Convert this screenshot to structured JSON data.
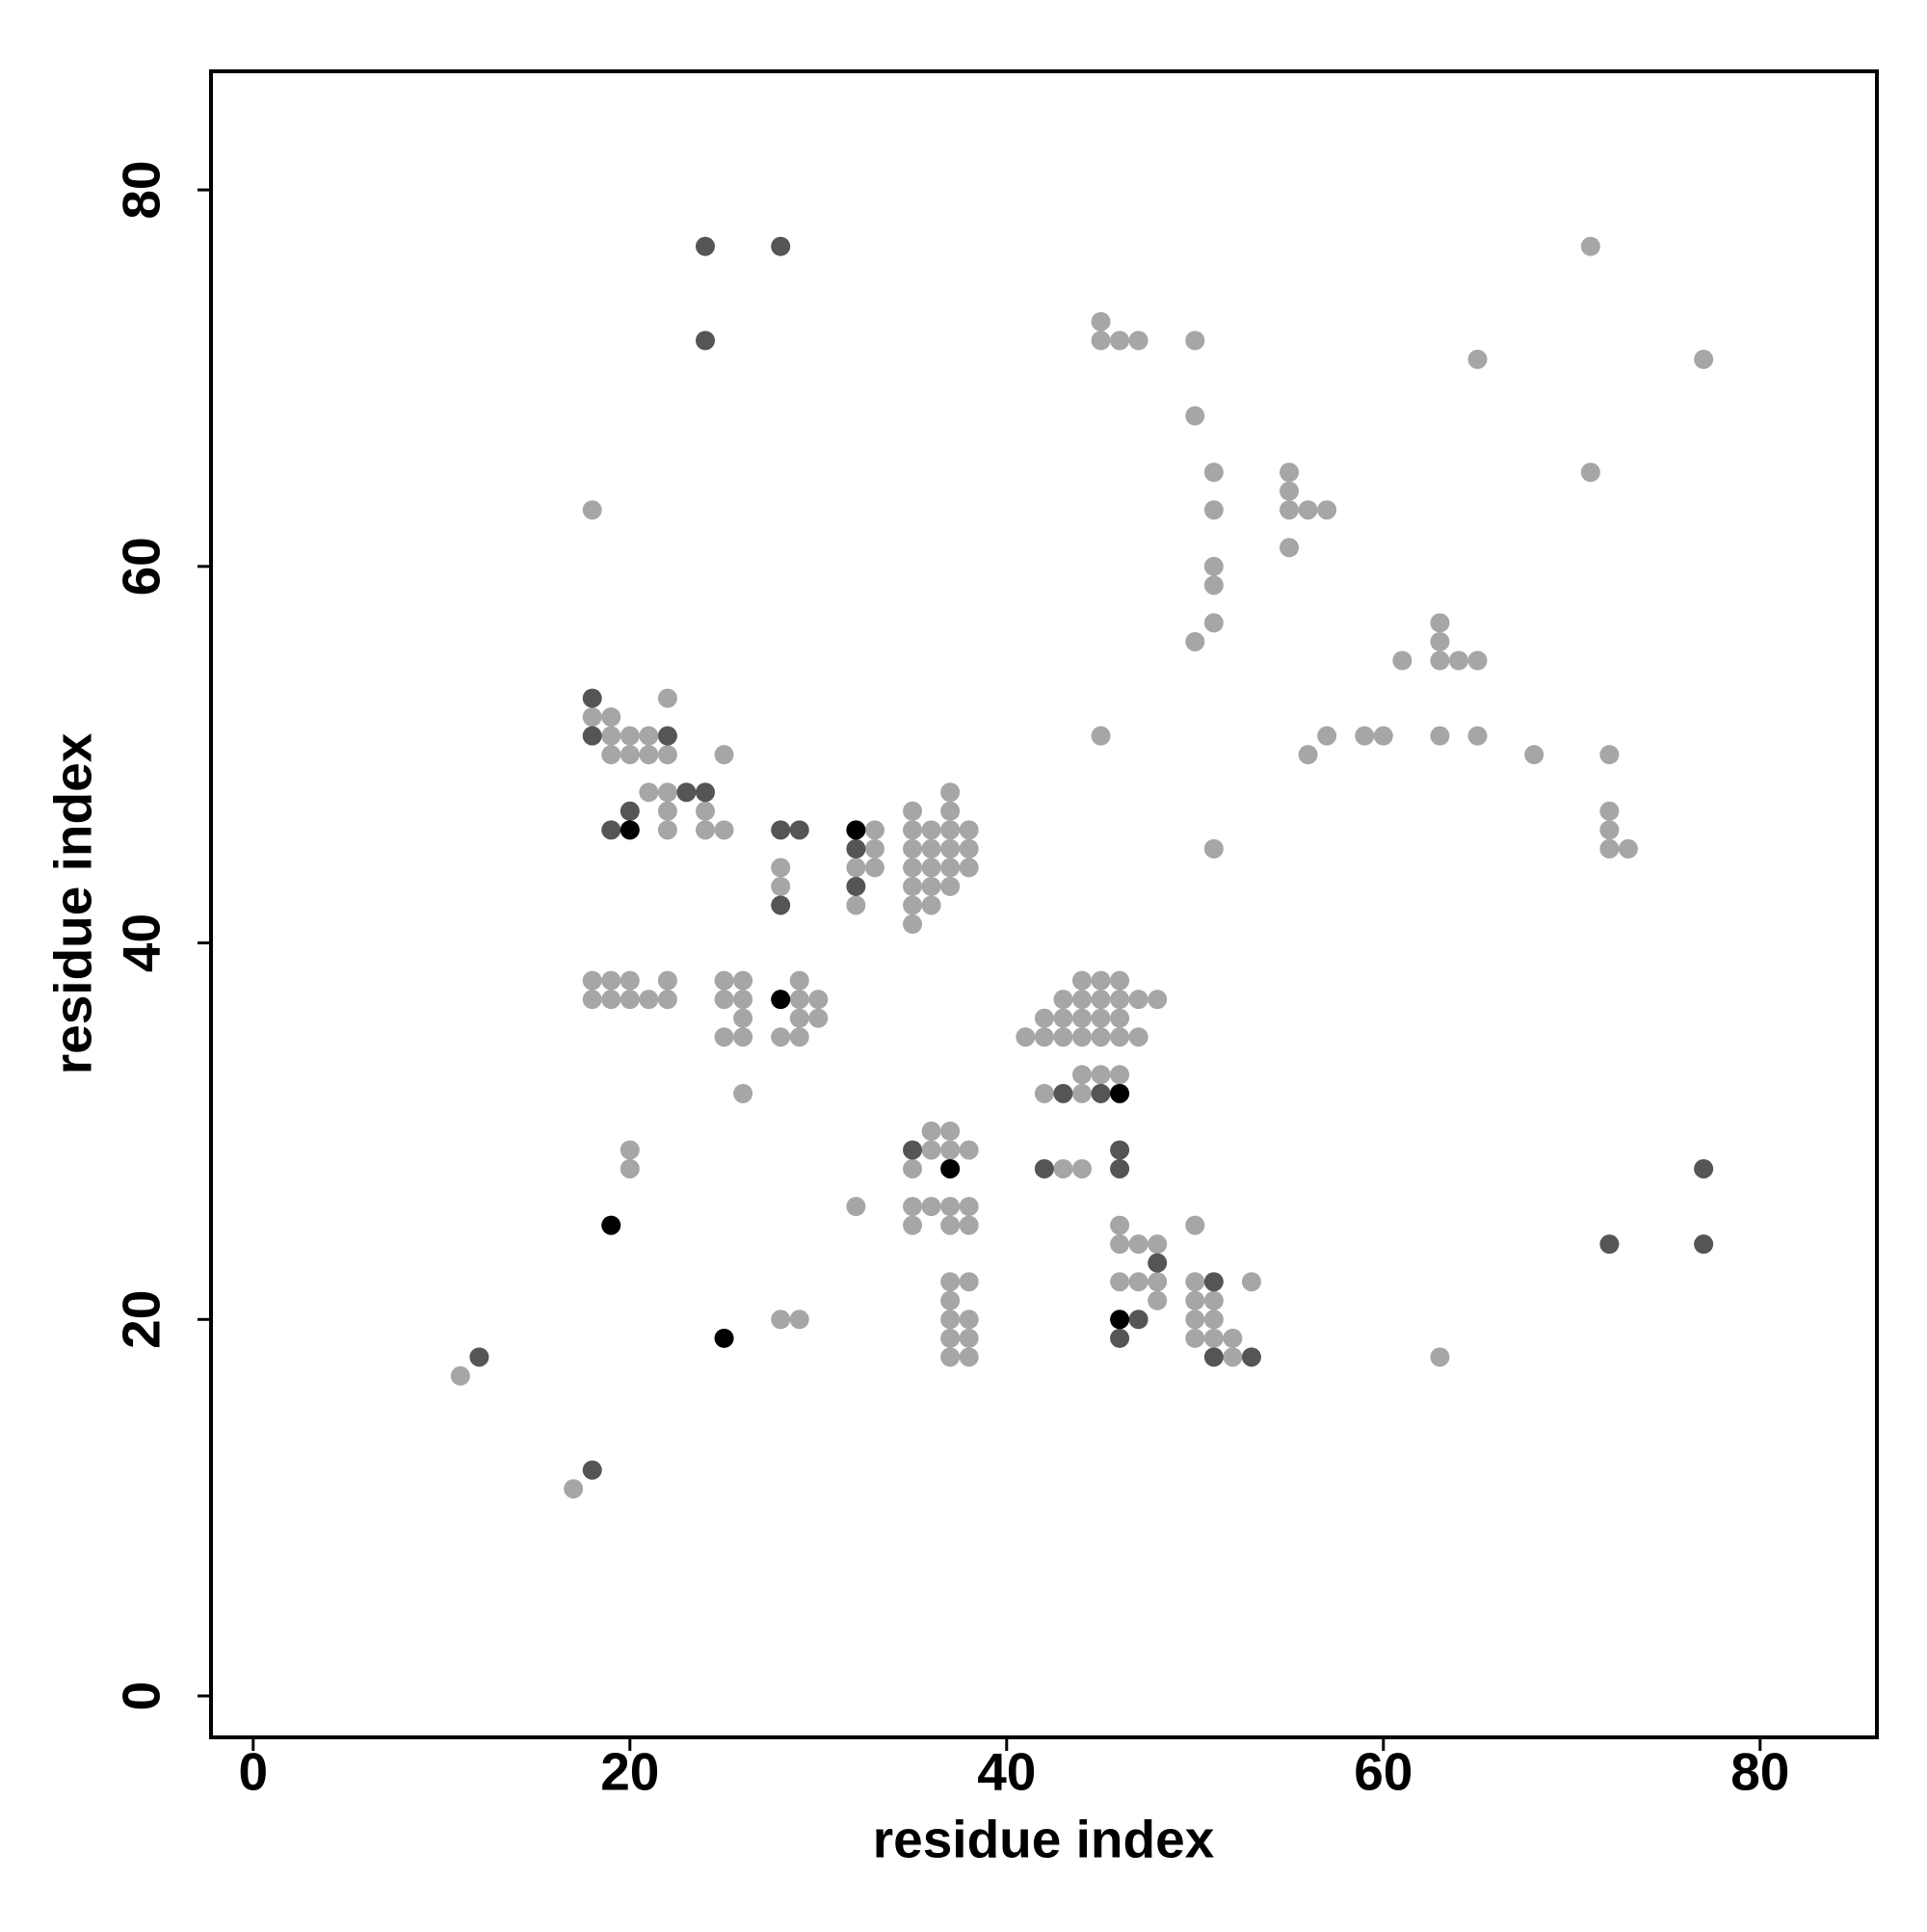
{
  "chart_data": {
    "type": "scatter",
    "xlabel": "residue index",
    "ylabel": "residue index",
    "xlim": [
      -2.24,
      86.2
    ],
    "ylim": [
      -2.2,
      86.3
    ],
    "xticks": [
      0,
      20,
      40,
      60,
      80
    ],
    "yticks": [
      0,
      20,
      40,
      60,
      80
    ],
    "series": [
      {
        "color": "#a6a6a6",
        "x": [
          71,
          45,
          45,
          46,
          47,
          50,
          65,
          77,
          50,
          51,
          55,
          71,
          55,
          18,
          51,
          55,
          56,
          57,
          55,
          51,
          51,
          51,
          63,
          50,
          63,
          61,
          63,
          64,
          65,
          22,
          18,
          19,
          19,
          20,
          21,
          45,
          57,
          59,
          60,
          63,
          65,
          19,
          20,
          21,
          22,
          25,
          56,
          68,
          72,
          21,
          22,
          37,
          22,
          24,
          35,
          37,
          72,
          22,
          24,
          25,
          33,
          35,
          36,
          37,
          38,
          72,
          33,
          35,
          36,
          37,
          38,
          51,
          72,
          73,
          28,
          32,
          33,
          35,
          36,
          37,
          38,
          28,
          35,
          36,
          37,
          32,
          35,
          36,
          35,
          18,
          19,
          20,
          22,
          25,
          26,
          29,
          44,
          45,
          46,
          18,
          19,
          20,
          21,
          22,
          25,
          26,
          29,
          30,
          43,
          44,
          45,
          46,
          47,
          48,
          26,
          29,
          30,
          42,
          43,
          44,
          45,
          46,
          25,
          26,
          28,
          29,
          41,
          42,
          43,
          44,
          45,
          46,
          47,
          44,
          45,
          46,
          26,
          42,
          44,
          36,
          37,
          20,
          36,
          37,
          38,
          20,
          35,
          43,
          44,
          32,
          35,
          36,
          37,
          38,
          35,
          37,
          38,
          46,
          50,
          46,
          47,
          48,
          37,
          38,
          46,
          47,
          48,
          50,
          53,
          37,
          48,
          50,
          51,
          28,
          29,
          37,
          38,
          50,
          51,
          37,
          38,
          50,
          51,
          52,
          37,
          38,
          52,
          63,
          11,
          17
        ],
        "values": [
          77,
          73,
          72,
          72,
          72,
          72,
          71,
          71,
          68,
          65,
          65,
          65,
          64,
          63,
          63,
          63,
          63,
          63,
          61,
          60,
          59,
          57,
          57,
          56,
          56,
          55,
          55,
          55,
          55,
          53,
          52,
          52,
          51,
          51,
          51,
          51,
          51,
          51,
          51,
          51,
          51,
          50,
          50,
          50,
          50,
          50,
          50,
          50,
          50,
          48,
          48,
          48,
          47,
          47,
          47,
          47,
          47,
          46,
          46,
          46,
          46,
          46,
          46,
          46,
          46,
          46,
          45,
          45,
          45,
          45,
          45,
          45,
          45,
          45,
          44,
          44,
          44,
          44,
          44,
          44,
          44,
          43,
          43,
          43,
          43,
          42,
          42,
          42,
          41,
          38,
          38,
          38,
          38,
          38,
          38,
          38,
          38,
          38,
          38,
          37,
          37,
          37,
          37,
          37,
          37,
          37,
          37,
          37,
          37,
          37,
          37,
          37,
          37,
          37,
          36,
          36,
          36,
          36,
          36,
          36,
          36,
          36,
          35,
          35,
          35,
          35,
          35,
          35,
          35,
          35,
          35,
          35,
          35,
          33,
          33,
          33,
          32,
          32,
          32,
          30,
          30,
          29,
          29,
          29,
          29,
          28,
          28,
          28,
          28,
          26,
          26,
          26,
          26,
          26,
          25,
          25,
          25,
          25,
          25,
          24,
          24,
          24,
          22,
          22,
          22,
          22,
          22,
          22,
          22,
          21,
          21,
          21,
          21,
          20,
          20,
          20,
          20,
          20,
          20,
          19,
          19,
          19,
          19,
          19,
          18,
          18,
          18,
          18,
          17,
          11
        ]
      },
      {
        "color": "#555555",
        "x": [
          24,
          28,
          24,
          18,
          18,
          22,
          23,
          24,
          20,
          19,
          28,
          29,
          32,
          32,
          28,
          43,
          45,
          35,
          46,
          42,
          46,
          77,
          72,
          77,
          48,
          51,
          47,
          46,
          12,
          51,
          53,
          18
        ],
        "values": [
          77,
          77,
          72,
          53,
          51,
          51,
          48,
          48,
          47,
          46,
          46,
          46,
          45,
          43,
          42,
          32,
          32,
          29,
          29,
          28,
          28,
          28,
          24,
          24,
          23,
          22,
          20,
          19,
          18,
          18,
          18,
          12
        ]
      },
      {
        "color": "#000000",
        "x": [
          20,
          32,
          28,
          46,
          37,
          19,
          46,
          25
        ],
        "values": [
          46,
          46,
          37,
          32,
          28,
          25,
          20,
          19
        ]
      }
    ]
  }
}
